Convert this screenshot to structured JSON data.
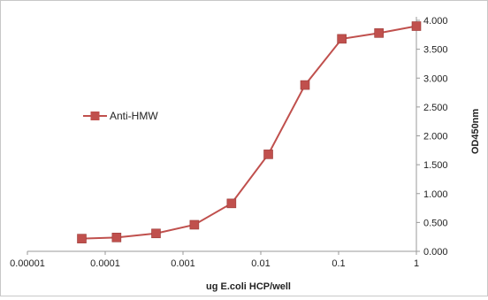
{
  "chart_data": {
    "type": "line",
    "title": "",
    "xlabel": "ug E.coli HCP/well",
    "ylabel": "OD450nm",
    "x_scale": "log",
    "xlim": [
      1e-05,
      1
    ],
    "ylim": [
      0,
      4
    ],
    "x_tick_labels": [
      "0.00001",
      "0.0001",
      "0.001",
      "0.01",
      "0.1",
      "1"
    ],
    "y_tick_labels": [
      "0.000",
      "0.500",
      "1.000",
      "1.500",
      "2.000",
      "2.500",
      "3.000",
      "3.500",
      "4.000"
    ],
    "y_axis_side": "right",
    "grid": false,
    "legend_position": "left-middle",
    "series": [
      {
        "name": "Anti-HMW",
        "color": "#c0504d",
        "marker": "square",
        "x": [
          5e-05,
          0.00014,
          0.00045,
          0.0014,
          0.0042,
          0.0125,
          0.037,
          0.11,
          0.33,
          1.0
        ],
        "y": [
          0.22,
          0.24,
          0.31,
          0.46,
          0.83,
          1.68,
          2.88,
          3.68,
          3.78,
          3.9
        ]
      }
    ]
  }
}
